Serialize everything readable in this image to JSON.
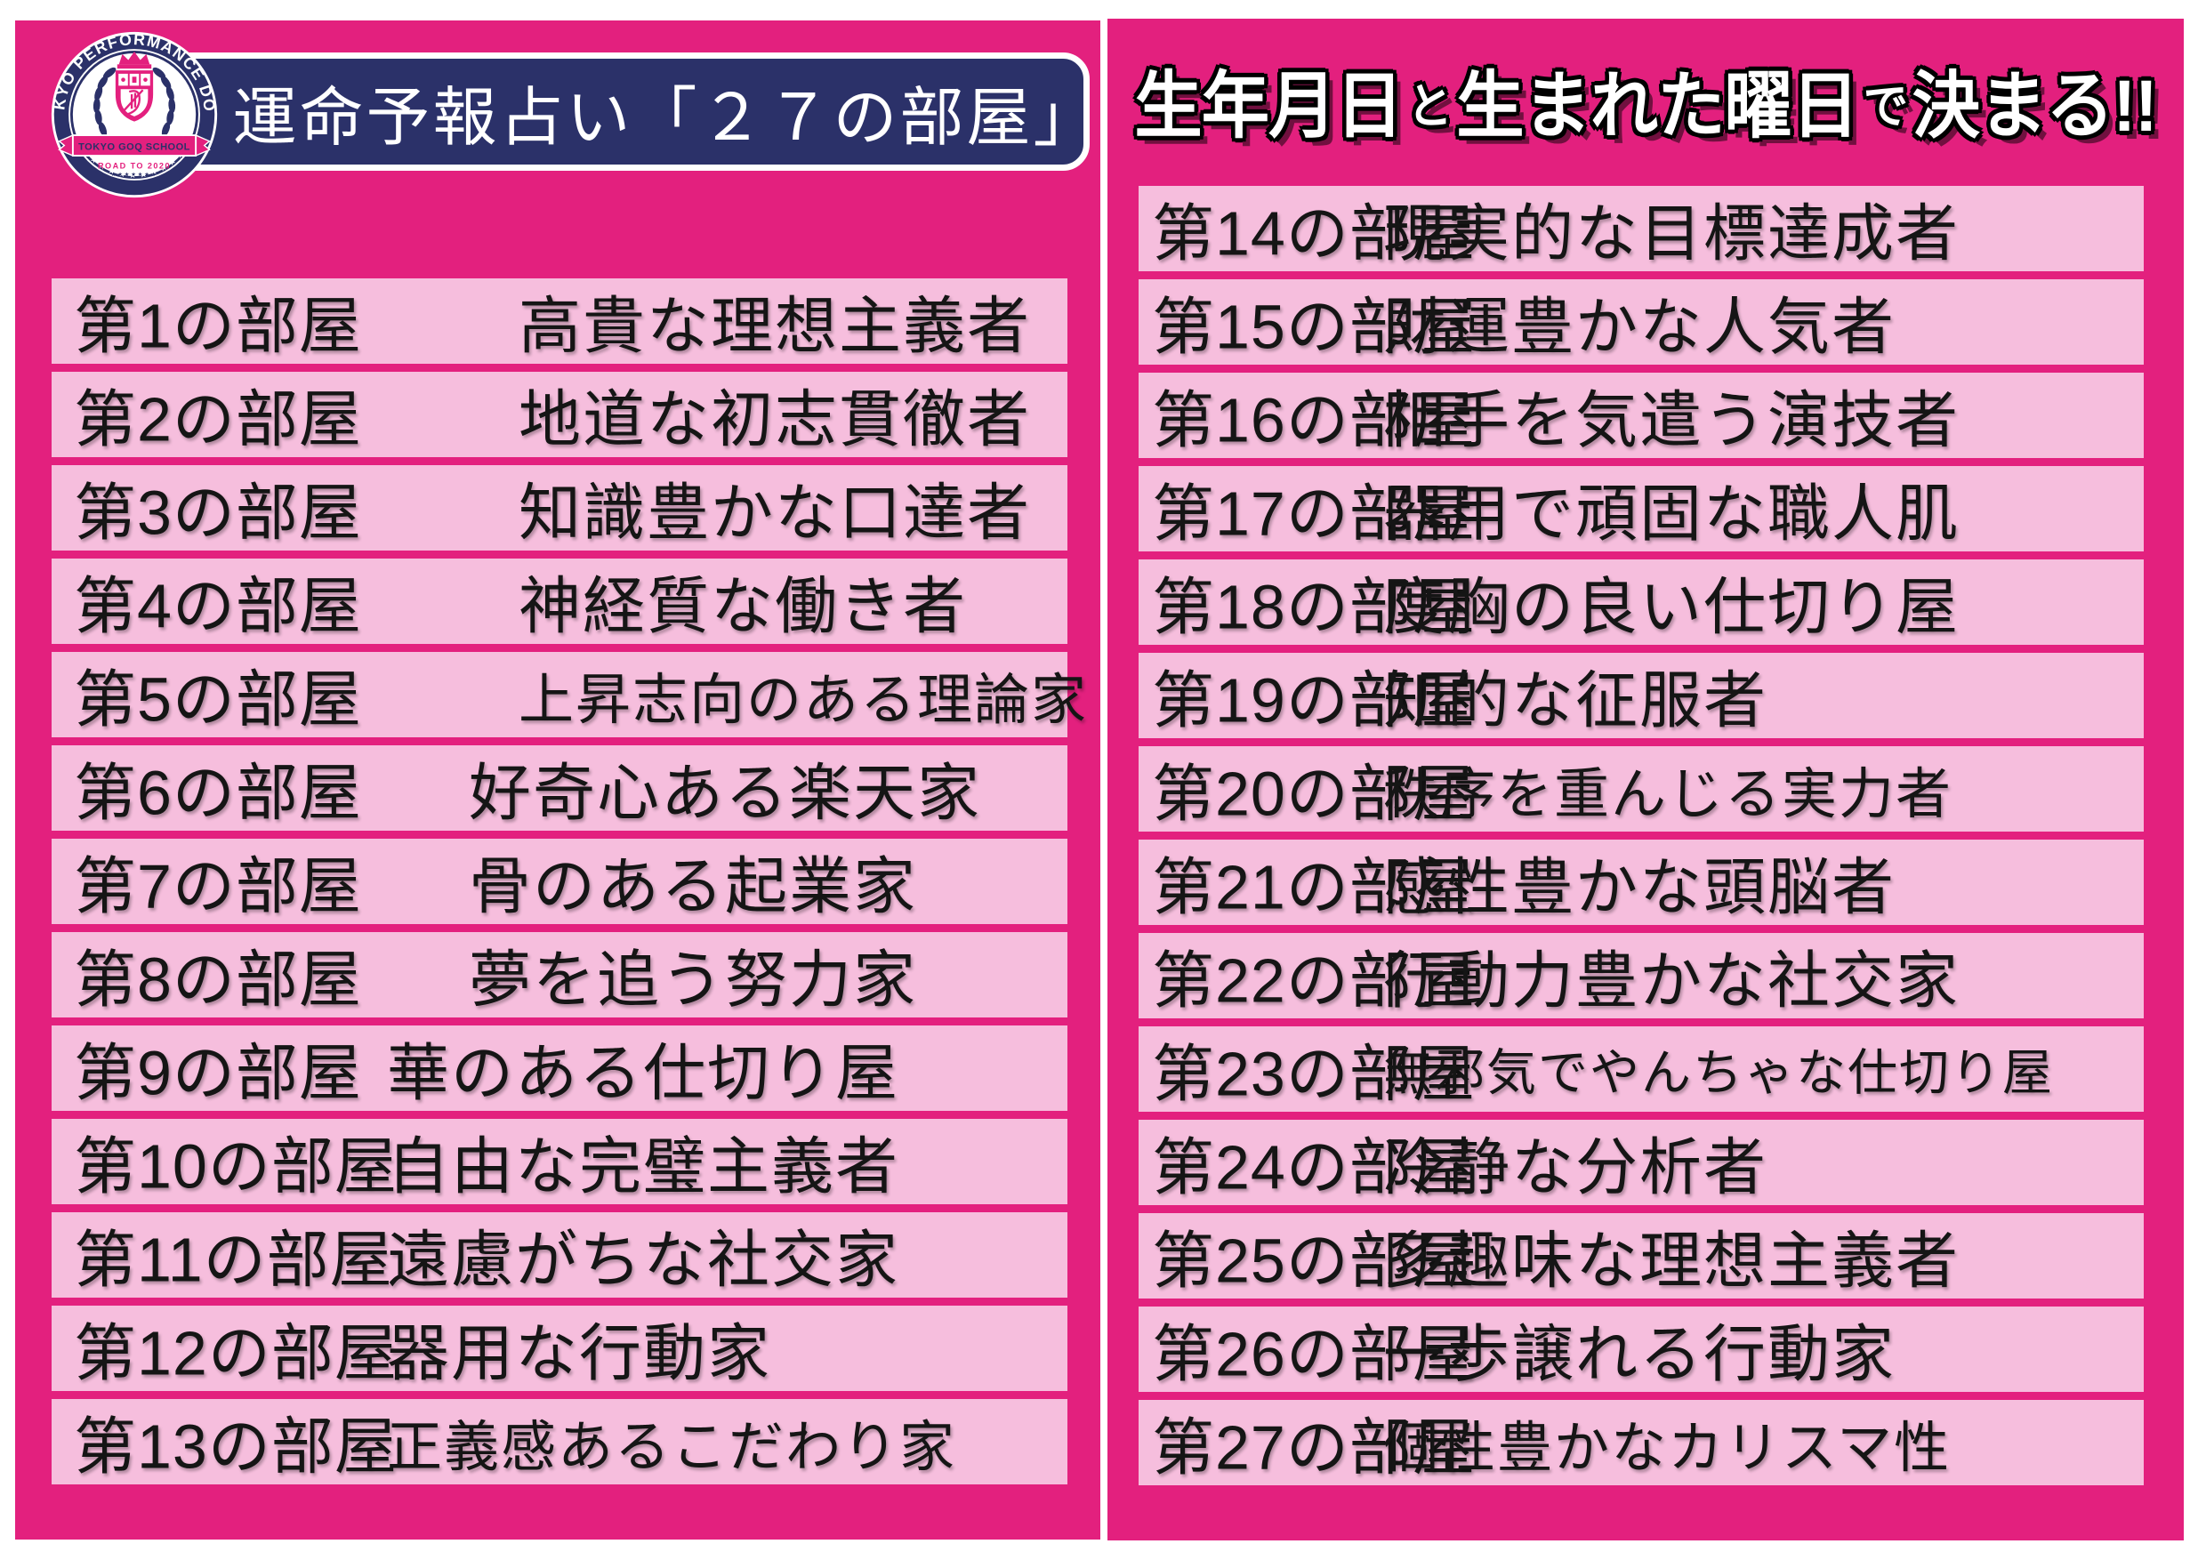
{
  "colors": {
    "magenta": "#E3207E",
    "light_pink": "#F6BEDD",
    "navy": "#2B3169",
    "white": "#FFFFFF",
    "text_black": "#151515"
  },
  "logo": {
    "arc_text": "TOKYO PERFORMANCE DOLL",
    "ribbon_text": "TOKYO GOQ SCHOOL",
    "road_text": "ROAD TO 2020",
    "ring_stars": "★★★★★★★★★★★★★",
    "mini_stars": "★★★★★★★"
  },
  "left_panel": {
    "title": "運命予報占い「２７の部屋」",
    "rooms": [
      {
        "label": "第1の部屋",
        "desc": "高貴な理想主義者"
      },
      {
        "label": "第2の部屋",
        "desc": "地道な初志貫徹者"
      },
      {
        "label": "第3の部屋",
        "desc": "知識豊かな口達者"
      },
      {
        "label": "第4の部屋",
        "desc": "神経質な働き者"
      },
      {
        "label": "第5の部屋",
        "desc": "上昇志向のある理論家"
      },
      {
        "label": "第6の部屋",
        "desc": "好奇心ある楽天家"
      },
      {
        "label": "第7の部屋",
        "desc": "骨のある起業家"
      },
      {
        "label": "第8の部屋",
        "desc": "夢を追う努力家"
      },
      {
        "label": "第9の部屋",
        "desc": "華のある仕切り屋"
      },
      {
        "label": "第10の部屋",
        "desc": "自由な完璧主義者"
      },
      {
        "label": "第11の部屋",
        "desc": "遠慮がちな社交家"
      },
      {
        "label": "第12の部屋",
        "desc": "器用な行動家"
      },
      {
        "label": "第13の部屋",
        "desc": "正義感あるこだわり家"
      }
    ]
  },
  "right_panel": {
    "header_segments": [
      {
        "text": "生年月日",
        "small": false
      },
      {
        "text": "と",
        "small": true
      },
      {
        "text": "生まれた曜日",
        "small": false
      },
      {
        "text": "で",
        "small": true
      },
      {
        "text": "決まる!!",
        "small": false
      }
    ],
    "rooms": [
      {
        "label": "第14の部屋",
        "desc": "現実的な目標達成者"
      },
      {
        "label": "第15の部屋",
        "desc": "財運豊かな人気者"
      },
      {
        "label": "第16の部屋",
        "desc": "相手を気遣う演技者"
      },
      {
        "label": "第17の部屋",
        "desc": "器用で頑固な職人肌"
      },
      {
        "label": "第18の部屋",
        "desc": "度胸の良い仕切り屋"
      },
      {
        "label": "第19の部屋",
        "desc": "知的な征服者"
      },
      {
        "label": "第20の部屋",
        "desc": "秩序を重んじる実力者"
      },
      {
        "label": "第21の部屋",
        "desc": "感性豊かな頭脳者"
      },
      {
        "label": "第22の部屋",
        "desc": "行動力豊かな社交家"
      },
      {
        "label": "第23の部屋",
        "desc": "無邪気でやんちゃな仕切り屋"
      },
      {
        "label": "第24の部屋",
        "desc": "冷静な分析者"
      },
      {
        "label": "第25の部屋",
        "desc": "多趣味な理想主義者"
      },
      {
        "label": "第26の部屋",
        "desc": "一歩譲れる行動家"
      },
      {
        "label": "第27の部屋",
        "desc": "個性豊かなカリスマ性"
      }
    ]
  }
}
